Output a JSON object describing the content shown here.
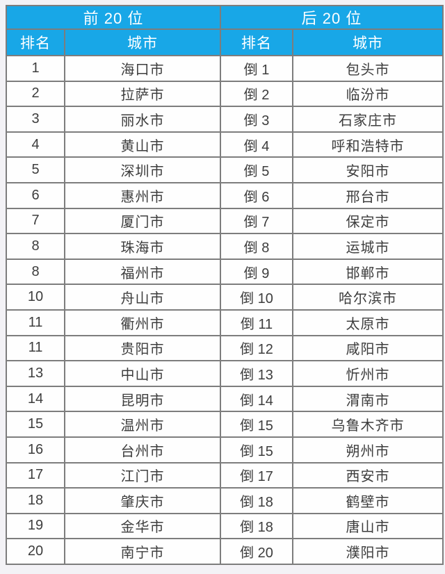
{
  "colors": {
    "header_bg": "#18a7e7",
    "header_text": "#ffffff",
    "header_border": "#1c6489",
    "grid_border": "#7d7d7d",
    "outer_border": "#4a4a4a",
    "body_text": "#3d3d3d",
    "page_bg": "#f3f2f6"
  },
  "header": {
    "left_group": "前 20 位",
    "right_group": "后 20 位",
    "rank_label": "排名",
    "city_label": "城市"
  },
  "chart_data": {
    "type": "table",
    "title": "",
    "column_groups": [
      "前 20 位",
      "后 20 位"
    ],
    "columns": [
      "排名",
      "城市",
      "排名",
      "城市"
    ],
    "rows": [
      [
        "1",
        "海口市",
        "倒 1",
        "包头市"
      ],
      [
        "2",
        "拉萨市",
        "倒 2",
        "临汾市"
      ],
      [
        "3",
        "丽水市",
        "倒 3",
        "石家庄市"
      ],
      [
        "4",
        "黄山市",
        "倒 4",
        "呼和浩特市"
      ],
      [
        "5",
        "深圳市",
        "倒 5",
        "安阳市"
      ],
      [
        "6",
        "惠州市",
        "倒 6",
        "邢台市"
      ],
      [
        "7",
        "厦门市",
        "倒 7",
        "保定市"
      ],
      [
        "8",
        "珠海市",
        "倒 8",
        "运城市"
      ],
      [
        "8",
        "福州市",
        "倒 9",
        "邯郸市"
      ],
      [
        "10",
        "舟山市",
        "倒 10",
        "哈尔滨市"
      ],
      [
        "11",
        "衢州市",
        "倒 11",
        "太原市"
      ],
      [
        "11",
        "贵阳市",
        "倒 12",
        "咸阳市"
      ],
      [
        "13",
        "中山市",
        "倒 13",
        "忻州市"
      ],
      [
        "14",
        "昆明市",
        "倒 14",
        "渭南市"
      ],
      [
        "15",
        "温州市",
        "倒 15",
        "乌鲁木齐市"
      ],
      [
        "16",
        "台州市",
        "倒 15",
        "朔州市"
      ],
      [
        "17",
        "江门市",
        "倒 17",
        "西安市"
      ],
      [
        "18",
        "肇庆市",
        "倒 18",
        "鹤壁市"
      ],
      [
        "19",
        "金华市",
        "倒 18",
        "唐山市"
      ],
      [
        "20",
        "南宁市",
        "倒 20",
        "濮阳市"
      ]
    ]
  }
}
